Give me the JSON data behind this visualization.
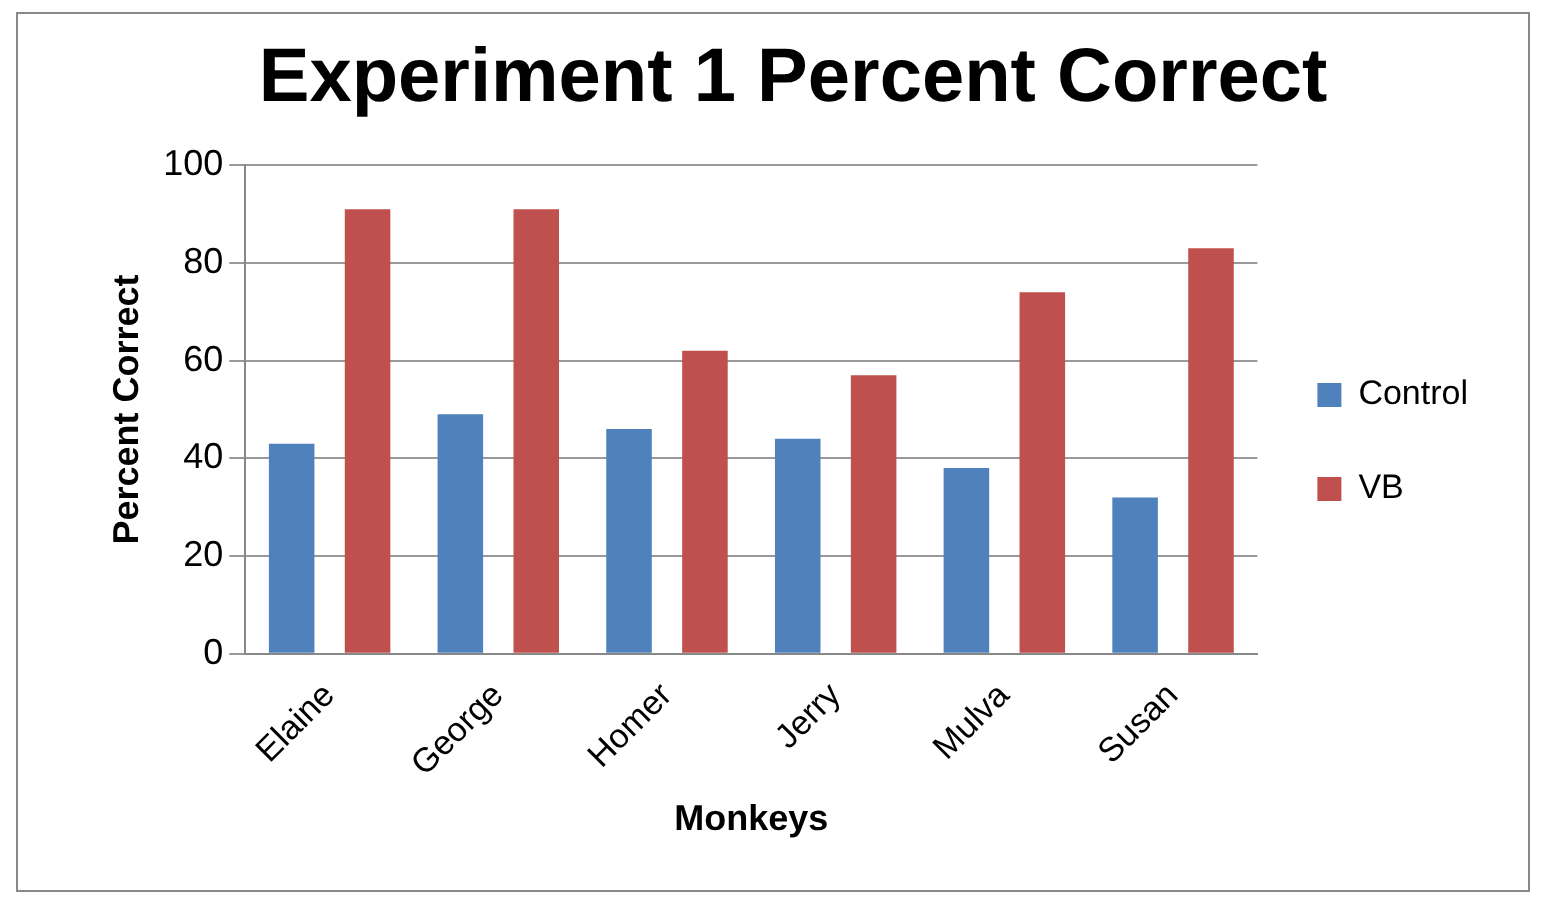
{
  "chart_data": {
    "type": "bar",
    "title": "Experiment 1 Percent Correct",
    "xlabel": "Monkeys",
    "ylabel": "Percent Correct",
    "categories": [
      "Elaine",
      "George",
      "Homer",
      "Jerry",
      "Mulva",
      "Susan"
    ],
    "series": [
      {
        "name": "Control",
        "color": "#4f81bd",
        "values": [
          43,
          49,
          46,
          44,
          38,
          32
        ]
      },
      {
        "name": "VB",
        "color": "#c0504d",
        "values": [
          91,
          91,
          62,
          57,
          74,
          83
        ]
      }
    ],
    "ylim": [
      0,
      100
    ],
    "yticks": [
      0,
      20,
      40,
      60,
      80,
      100
    ],
    "grid": "y",
    "legend": "right"
  }
}
